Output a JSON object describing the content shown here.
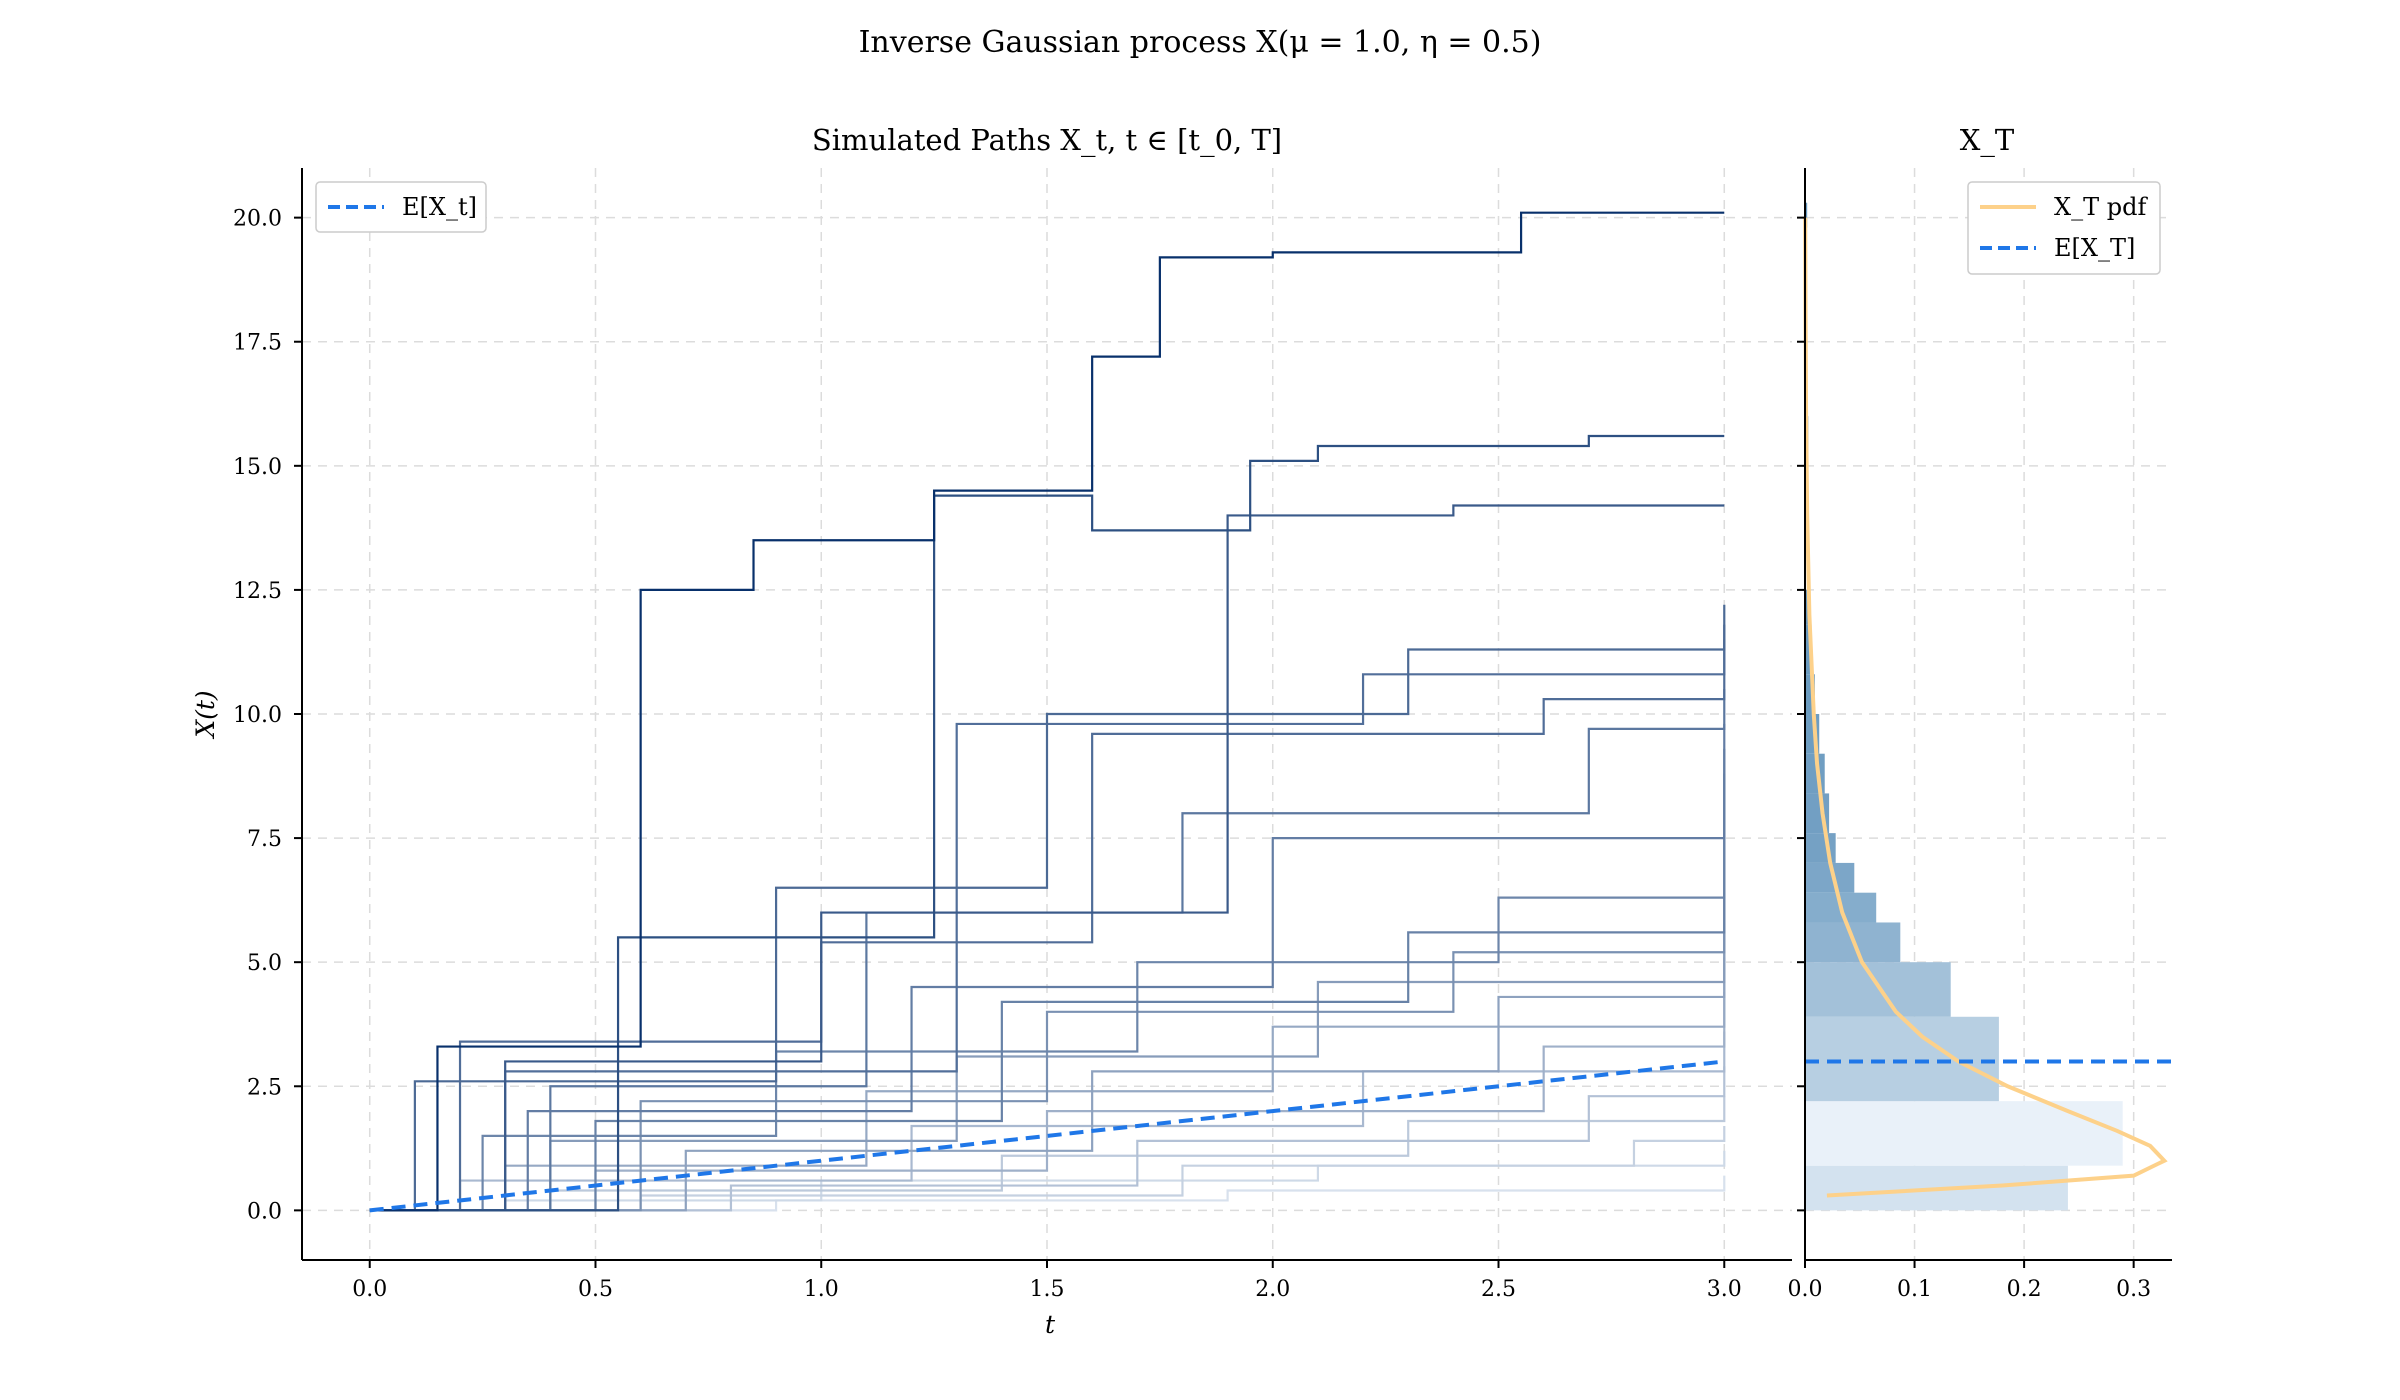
{
  "figure": {
    "title": "Inverse Gaussian process X(μ = 1.0, η = 0.5)"
  },
  "colors": {
    "mean_line": "#1f77e8",
    "pdf_line": "#fdd18a",
    "path_light": "#eef4fb",
    "path_dark": "#08306b",
    "hist_light": "#e9f1f9",
    "hist_dark": "#5a8fb8"
  },
  "chart_data": [
    {
      "type": "line",
      "title": "Simulated Paths X_t, t ∈ [t_0, T]",
      "xlabel": "t",
      "ylabel": "X(t)",
      "xlim": [
        -0.15,
        3.15
      ],
      "ylim": [
        -1.0,
        21.0
      ],
      "x_ticks": [
        "0.0",
        "0.5",
        "1.0",
        "1.5",
        "2.0",
        "2.5",
        "3.0"
      ],
      "y_ticks": [
        "0.0",
        "2.5",
        "5.0",
        "7.5",
        "10.0",
        "12.5",
        "15.0",
        "17.5",
        "20.0"
      ],
      "grid": true,
      "legend": {
        "position": "upper-left",
        "entries": [
          "E[X_t]"
        ]
      },
      "mean_line": {
        "name": "E[X_t]",
        "x": [
          0.0,
          3.0
        ],
        "y": [
          0.0,
          3.0
        ]
      },
      "series": [
        {
          "x": [
            0.0,
            0.15,
            0.6,
            0.85,
            1.25,
            1.6,
            1.75,
            2.0,
            2.55,
            3.0
          ],
          "y": [
            0.0,
            3.3,
            12.5,
            13.5,
            14.5,
            17.2,
            19.2,
            19.3,
            20.1,
            20.1
          ]
        },
        {
          "x": [
            0.0,
            0.55,
            1.25,
            1.6,
            1.95,
            2.1,
            2.7,
            3.0
          ],
          "y": [
            0.0,
            5.5,
            14.4,
            13.7,
            15.1,
            15.4,
            15.6,
            15.6
          ]
        },
        {
          "x": [
            0.0,
            0.3,
            1.0,
            1.9,
            2.4,
            3.0
          ],
          "y": [
            0.0,
            3.0,
            6.0,
            14.0,
            14.2,
            14.2
          ]
        },
        {
          "x": [
            0.0,
            0.1,
            0.9,
            1.5,
            2.3,
            3.0
          ],
          "y": [
            0.0,
            2.6,
            6.5,
            10.0,
            11.3,
            12.2
          ]
        },
        {
          "x": [
            0.0,
            0.2,
            1.0,
            1.6,
            2.6,
            3.0
          ],
          "y": [
            0.0,
            3.4,
            5.4,
            9.6,
            10.3,
            11.8
          ]
        },
        {
          "x": [
            0.0,
            0.3,
            1.3,
            2.2,
            3.0
          ],
          "y": [
            0.0,
            2.8,
            9.8,
            10.8,
            11.5
          ]
        },
        {
          "x": [
            0.0,
            0.4,
            1.1,
            1.8,
            2.7,
            3.0
          ],
          "y": [
            0.0,
            2.5,
            6.0,
            8.0,
            9.7,
            10.5
          ]
        },
        {
          "x": [
            0.0,
            0.35,
            1.2,
            2.0,
            3.0
          ],
          "y": [
            0.0,
            2.0,
            4.5,
            7.5,
            9.8
          ]
        },
        {
          "x": [
            0.0,
            0.5,
            1.4,
            2.3,
            3.0
          ],
          "y": [
            0.0,
            1.8,
            4.2,
            5.6,
            9.3
          ]
        },
        {
          "x": [
            0.0,
            0.25,
            0.9,
            1.7,
            2.5,
            3.0
          ],
          "y": [
            0.0,
            1.5,
            3.2,
            5.0,
            6.3,
            8.8
          ]
        },
        {
          "x": [
            0.0,
            0.6,
            1.5,
            2.4,
            3.0
          ],
          "y": [
            0.0,
            2.2,
            4.0,
            5.2,
            7.6
          ]
        },
        {
          "x": [
            0.0,
            0.4,
            1.3,
            2.1,
            3.0
          ],
          "y": [
            0.0,
            1.4,
            3.1,
            4.6,
            6.4
          ]
        },
        {
          "x": [
            0.0,
            0.7,
            1.6,
            2.5,
            3.0
          ],
          "y": [
            0.0,
            1.2,
            2.8,
            4.3,
            5.8
          ]
        },
        {
          "x": [
            0.0,
            0.3,
            1.1,
            2.0,
            3.0
          ],
          "y": [
            0.0,
            0.9,
            2.4,
            3.7,
            5.1
          ]
        },
        {
          "x": [
            0.0,
            0.5,
            1.5,
            2.6,
            3.0
          ],
          "y": [
            0.0,
            0.8,
            2.0,
            3.3,
            4.4
          ]
        },
        {
          "x": [
            0.0,
            0.2,
            1.2,
            2.2,
            3.0
          ],
          "y": [
            0.0,
            0.6,
            1.7,
            2.8,
            3.6
          ]
        },
        {
          "x": [
            0.0,
            0.8,
            1.7,
            2.7,
            3.0
          ],
          "y": [
            0.0,
            0.5,
            1.4,
            2.3,
            2.9
          ]
        },
        {
          "x": [
            0.0,
            0.4,
            1.4,
            2.3,
            3.0
          ],
          "y": [
            0.0,
            0.4,
            1.1,
            1.8,
            2.3
          ]
        },
        {
          "x": [
            0.0,
            0.6,
            1.8,
            2.8,
            3.0
          ],
          "y": [
            0.0,
            0.3,
            0.9,
            1.4,
            1.7
          ]
        },
        {
          "x": [
            0.0,
            0.3,
            1.0,
            2.1,
            3.0
          ],
          "y": [
            0.0,
            0.2,
            0.6,
            0.9,
            1.2
          ]
        },
        {
          "x": [
            0.0,
            0.9,
            1.9,
            3.0
          ],
          "y": [
            0.0,
            0.2,
            0.4,
            0.7
          ]
        }
      ]
    },
    {
      "type": "bar",
      "orientation": "horizontal",
      "title": "X_T",
      "xlim": [
        0.0,
        0.335
      ],
      "ylim": [
        -1.0,
        21.0
      ],
      "x_ticks": [
        "0.0",
        "0.1",
        "0.2",
        "0.3"
      ],
      "grid": true,
      "legend": {
        "position": "upper-right",
        "entries": [
          "X_T pdf",
          "E[X_T]"
        ]
      },
      "histogram": {
        "bin_edges": [
          0.0,
          0.9,
          2.2,
          3.9,
          5.0,
          5.8,
          6.4,
          7.0,
          7.6,
          8.4,
          9.2,
          10.0,
          10.8,
          11.8,
          12.5,
          15.2,
          16.0,
          19.8,
          20.3
        ],
        "densities": [
          0.24,
          0.29,
          0.177,
          0.133,
          0.087,
          0.065,
          0.045,
          0.028,
          0.022,
          0.018,
          0.013,
          0.009,
          0.006,
          0.003,
          0.0,
          0.003,
          0.0,
          0.002
        ]
      },
      "pdf": {
        "name": "X_T pdf",
        "y": [
          0.3,
          0.5,
          0.7,
          1.0,
          1.3,
          1.6,
          2.0,
          2.5,
          3.0,
          3.5,
          4.0,
          5.0,
          6.0,
          7.0,
          8.0,
          9.0,
          10.0,
          12.0,
          14.0,
          16.0,
          18.0,
          20.0
        ],
        "x": [
          0.02,
          0.18,
          0.3,
          0.328,
          0.315,
          0.285,
          0.24,
          0.185,
          0.14,
          0.107,
          0.083,
          0.052,
          0.034,
          0.023,
          0.016,
          0.011,
          0.008,
          0.004,
          0.002,
          0.001,
          0.0005,
          0.0002
        ]
      },
      "mean_line": {
        "name": "E[X_T]",
        "y": 3.0
      }
    }
  ]
}
